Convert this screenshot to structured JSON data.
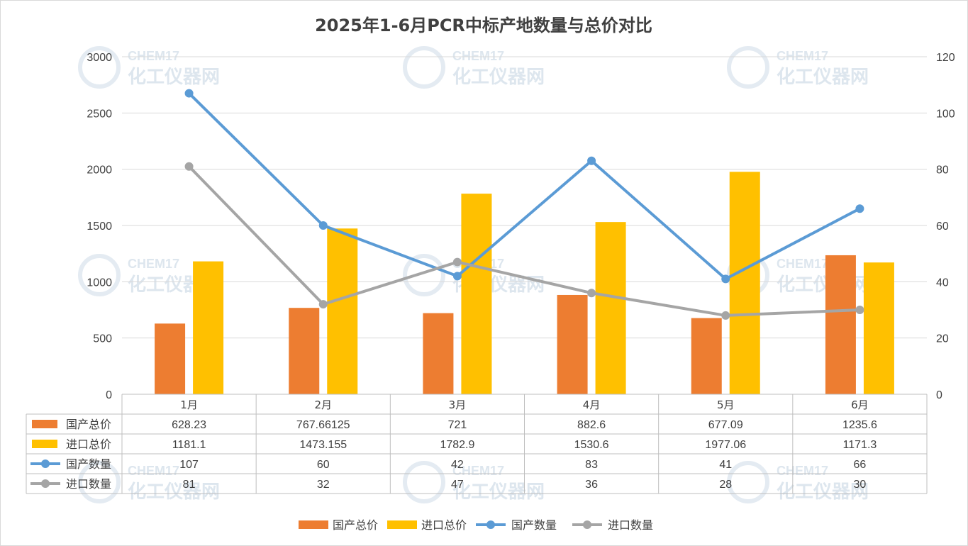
{
  "chart_data": {
    "type": "bar",
    "title": "2025年1-6月PCR中标产地数量与总价对比",
    "categories": [
      "1月",
      "2月",
      "3月",
      "4月",
      "5月",
      "6月"
    ],
    "y_left": {
      "min": 0,
      "max": 3000,
      "step": 500
    },
    "y_right": {
      "min": 0,
      "max": 120,
      "step": 20
    },
    "grid": true,
    "legend_position": "bottom",
    "data_table": true,
    "series": [
      {
        "name": "国产总价",
        "kind": "bar",
        "axis": "left",
        "color": "#ED7D31",
        "values": [
          628.23,
          767.66125,
          721,
          882.6,
          677.09,
          1235.6
        ],
        "labels": [
          "628.23",
          "767.66125",
          "721",
          "882.6",
          "677.09",
          "1235.6"
        ]
      },
      {
        "name": "进口总价",
        "kind": "bar",
        "axis": "left",
        "color": "#FFC000",
        "values": [
          1181.1,
          1473.155,
          1782.9,
          1530.6,
          1977.06,
          1171.3
        ],
        "labels": [
          "1181.1",
          "1473.155",
          "1782.9",
          "1530.6",
          "1977.06",
          "1171.3"
        ]
      },
      {
        "name": "国产数量",
        "kind": "line",
        "axis": "right",
        "color": "#5B9BD5",
        "values": [
          107,
          60,
          42,
          83,
          41,
          66
        ],
        "labels": [
          "107",
          "60",
          "42",
          "83",
          "41",
          "66"
        ]
      },
      {
        "name": "进口数量",
        "kind": "line",
        "axis": "right",
        "color": "#A5A5A5",
        "values": [
          81,
          32,
          47,
          36,
          28,
          30
        ],
        "labels": [
          "81",
          "32",
          "47",
          "36",
          "28",
          "30"
        ]
      }
    ],
    "watermark": {
      "top": "CHEM17",
      "bottom": "化工仪器网"
    }
  }
}
